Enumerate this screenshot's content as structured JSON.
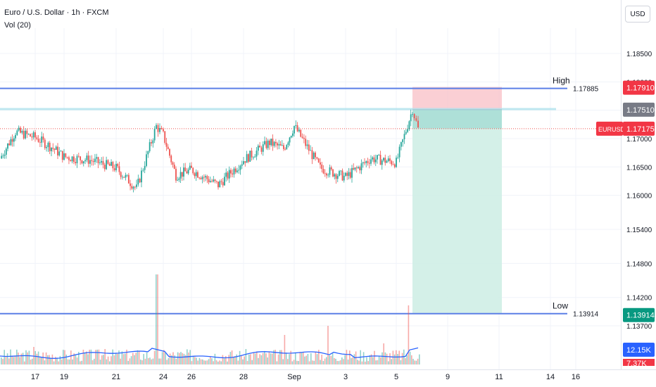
{
  "header": {
    "title": "Euro / U.S. Dollar · 1h · FXCM",
    "indicator": "Vol (20)",
    "currency": "USD"
  },
  "colors": {
    "up": "#26a69a",
    "down": "#ef5350",
    "level_line": "#5b7fe6",
    "stop_zone": "#f8bfc6",
    "target_zone": "#cfeee6",
    "entry_zone": "#a5ddd4",
    "volume_ma": "#2962ff"
  },
  "chart_data": {
    "type": "candlestick",
    "symbol": "EURUSD",
    "timeframe": "1h",
    "price_axis": {
      "ticks": [
        1.185,
        1.18,
        1.175,
        1.17,
        1.165,
        1.16,
        1.154,
        1.148,
        1.142,
        1.137
      ],
      "tick_labels": [
        "1.18500",
        "1.18000",
        "1.17500",
        "1.17000",
        "1.16500",
        "1.16000",
        "1.15400",
        "1.14800",
        "1.14200",
        "1.13700"
      ]
    },
    "time_axis": {
      "labels": [
        "17",
        "19",
        "21",
        "24",
        "26",
        "28",
        "Sep",
        "3",
        "5",
        "9",
        "11",
        "14",
        "16"
      ]
    },
    "levels": [
      {
        "label": "High",
        "value": 1.17885,
        "value_label": "1.17885",
        "tag": "1.17910"
      },
      {
        "label": "Low",
        "value": 1.13914,
        "value_label": "1.13914",
        "tag": "1.13914"
      }
    ],
    "position": {
      "side": "short",
      "entry_tag": "1.17510",
      "entry": 1.1751,
      "stop": 1.1791,
      "target": 1.13914
    },
    "last_price": {
      "symbol": "EURUSD",
      "value": 1.17175,
      "label": "1.17175"
    },
    "volume": {
      "last": "12.15K",
      "prev": "7.37K"
    },
    "price_anchors": [
      {
        "day": "Aug 15",
        "price": 1.1665
      },
      {
        "day": "Aug 16",
        "price": 1.1712
      },
      {
        "day": "Aug 17",
        "price": 1.1702
      },
      {
        "day": "Aug 18",
        "price": 1.1685
      },
      {
        "day": "Aug 19",
        "price": 1.1668
      },
      {
        "day": "Aug 20",
        "price": 1.1662
      },
      {
        "day": "Aug 21",
        "price": 1.1648
      },
      {
        "day": "Aug 22",
        "price": 1.1612
      },
      {
        "day": "Aug 23",
        "price": 1.1722
      },
      {
        "day": "Aug 24",
        "price": 1.1706
      },
      {
        "day": "Aug 25",
        "price": 1.1635
      },
      {
        "day": "Aug 26",
        "price": 1.1645
      },
      {
        "day": "Aug 27",
        "price": 1.1618
      },
      {
        "day": "Aug 28",
        "price": 1.1662
      },
      {
        "day": "Aug 29",
        "price": 1.1693
      },
      {
        "day": "Aug 30",
        "price": 1.1682
      },
      {
        "day": "Sep 1",
        "price": 1.1722
      },
      {
        "day": "Sep 2",
        "price": 1.1648
      },
      {
        "day": "Sep 3",
        "price": 1.1632
      },
      {
        "day": "Sep 4",
        "price": 1.1665
      },
      {
        "day": "Sep 5",
        "price": 1.1658
      },
      {
        "day": "Sep 6",
        "price": 1.1752
      },
      {
        "day": "Sep 6 last",
        "price": 1.1717
      }
    ]
  }
}
